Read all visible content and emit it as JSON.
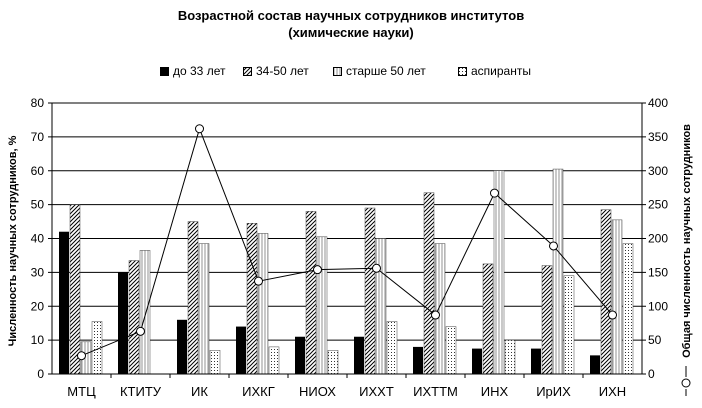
{
  "chart_data": {
    "type": "bar",
    "title_line1": "Возрастной состав научных сотрудников институтов",
    "title_line2": "(химические науки)",
    "ylabel_left": "Численность научных сотрудников, %",
    "ylabel_right": "Общая численность научных сотрудников",
    "categories": [
      "МТЦ",
      "КТИТУ",
      "ИК",
      "ИХКГ",
      "НИОХ",
      "ИХХТ",
      "ИХТТМ",
      "ИНХ",
      "ИрИХ",
      "ИХН"
    ],
    "left_axis": {
      "min": 0,
      "max": 80,
      "step": 10,
      "ticks": [
        "0",
        "10",
        "20",
        "30",
        "40",
        "50",
        "60",
        "70",
        "80"
      ]
    },
    "right_axis": {
      "min": 0,
      "max": 400,
      "step": 50,
      "ticks": [
        "0",
        "50",
        "100",
        "150",
        "200",
        "250",
        "300",
        "350",
        "400"
      ]
    },
    "series": [
      {
        "name": "до 33 лет",
        "axis": "left",
        "pattern": "solid-black",
        "values": [
          42,
          30,
          16,
          14,
          11,
          11,
          8,
          7.5,
          7.5,
          5.5
        ]
      },
      {
        "name": "34-50 лет",
        "axis": "left",
        "pattern": "diagonal-hatch",
        "values": [
          50,
          33.5,
          45,
          44.5,
          48,
          49,
          53.5,
          32.5,
          32,
          48.5
        ]
      },
      {
        "name": "старше 50 лет",
        "axis": "left",
        "pattern": "vertical-lines",
        "values": [
          9.5,
          36.5,
          38.5,
          41.5,
          40.5,
          40,
          38.5,
          60,
          60.5,
          45.5
        ]
      },
      {
        "name": "аспиранты",
        "axis": "left",
        "pattern": "dotted",
        "values": [
          15.5,
          0,
          7,
          8,
          7,
          15.5,
          14,
          10,
          29,
          38.5
        ]
      },
      {
        "name": "",
        "axis": "right",
        "type": "line",
        "marker": "open-circle",
        "values": [
          27,
          63,
          362,
          137,
          154,
          156,
          87,
          267,
          189,
          87
        ]
      }
    ],
    "colors": {
      "bar_fill": "#ffffff",
      "dark": "#000000",
      "grid": "#000000"
    },
    "grid": true,
    "legend_position": "top"
  }
}
